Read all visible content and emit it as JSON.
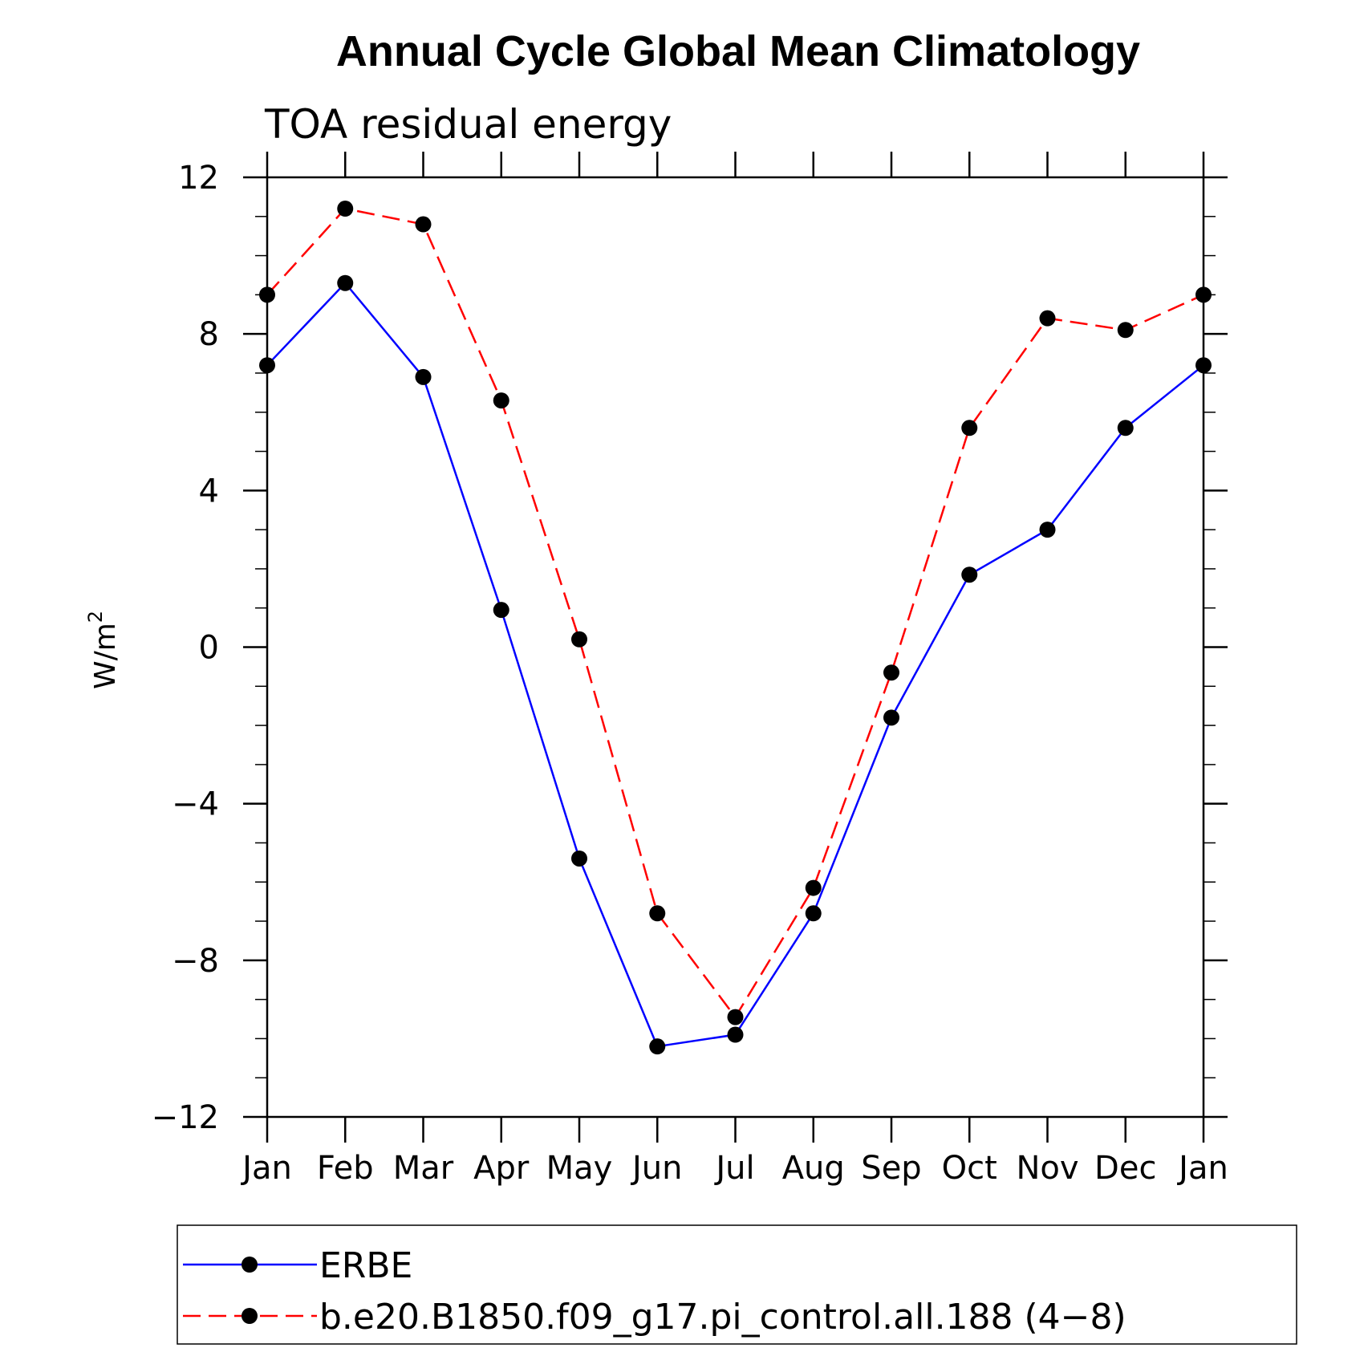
{
  "chart_data": {
    "type": "line",
    "title": "Annual Cycle Global Mean Climatology",
    "subtitle": "TOA residual energy",
    "ylabel": "W/m",
    "ylabel_superscript": "2",
    "xlabel": "",
    "categories": [
      "Jan",
      "Feb",
      "Mar",
      "Apr",
      "May",
      "Jun",
      "Jul",
      "Aug",
      "Sep",
      "Oct",
      "Nov",
      "Dec",
      "Jan"
    ],
    "ylim": [
      -12,
      12
    ],
    "yticks": [
      -12,
      -8,
      -4,
      0,
      4,
      8,
      12
    ],
    "ytick_labels": [
      "−12",
      "−8",
      "−4",
      "0",
      "4",
      "8",
      "12"
    ],
    "series": [
      {
        "name": "ERBE",
        "color": "#0000ff",
        "dash": "solid",
        "values": [
          7.2,
          9.3,
          6.9,
          0.95,
          -5.4,
          -10.2,
          -9.9,
          -6.8,
          -1.8,
          1.85,
          3.0,
          5.6,
          7.2
        ]
      },
      {
        "name": "b.e20.B1850.f09_g17.pi_control.all.188 (4−8)",
        "color": "#ff0000",
        "dash": "dashed",
        "values": [
          9.0,
          11.2,
          10.8,
          6.3,
          0.2,
          -6.8,
          -9.45,
          -6.15,
          -0.65,
          5.6,
          8.4,
          8.1,
          9.0
        ]
      }
    ],
    "legend_position": "bottom",
    "grid": false
  }
}
